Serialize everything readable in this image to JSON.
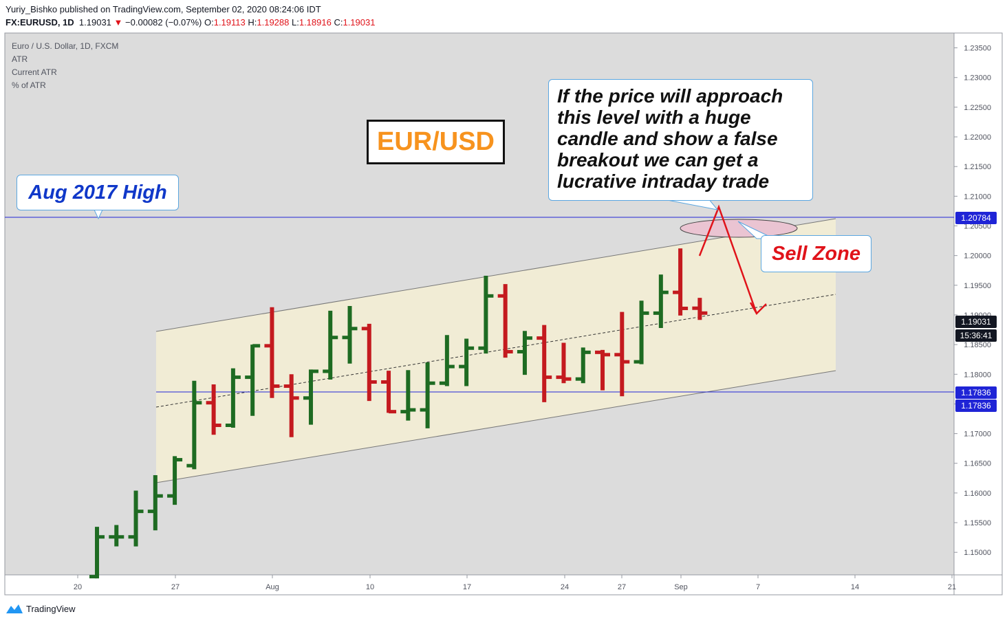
{
  "header": {
    "publish_line": "Yuriy_Bishko published on TradingView.com, September 02, 2020 08:24:06 IDT",
    "symbol": "FX:EURUSD, 1D",
    "last": "1.19031",
    "change": "−0.00082 (−0.07%)",
    "o_label": "O:",
    "o_value": "1.19113",
    "h_label": "H:",
    "h_value": "1.19288",
    "l_label": "L:",
    "l_value": "1.18916",
    "c_label": "C:",
    "c_value": "1.19031"
  },
  "legend": {
    "instrument": "Euro / U.S. Dollar, 1D, FXCM",
    "line2": "ATR",
    "line3": "Current ATR",
    "line4": "% of ATR"
  },
  "annotations": {
    "aug_high": "Aug 2017 High",
    "pair": "EUR/USD",
    "note_lines": [
      "If the price will approach",
      "this level with a huge",
      "candle and show a false",
      "breakout we can get a",
      "lucrative intraday trade"
    ],
    "sell_zone": "Sell Zone"
  },
  "price_labels": {
    "resistance": "1.20784",
    "last": "1.19031",
    "countdown": "15:36:41",
    "support_a": "1.17836",
    "support_b": "1.17836"
  },
  "footer": {
    "brand": "TradingView"
  },
  "colors": {
    "up": "#1e6b22",
    "down": "#c41a1f",
    "level": "#1f24d6",
    "channel_fill": "#f1ecd5",
    "plot_bg": "#dcdcdc"
  },
  "chart_data": {
    "type": "ohlc",
    "x_ticks": [
      "20",
      "27",
      "Aug",
      "10",
      "17",
      "24",
      "27",
      "Sep",
      "7",
      "14",
      "21"
    ],
    "y_ticks": [
      "1.23500",
      "1.23000",
      "1.22500",
      "1.22000",
      "1.21500",
      "1.21000",
      "1.20500",
      "1.20000",
      "1.19500",
      "1.19000",
      "1.18500",
      "1.18000",
      "1.17500",
      "1.17000",
      "1.16500",
      "1.16000",
      "1.15500",
      "1.15000"
    ],
    "ylim": [
      1.1462,
      1.2375
    ],
    "horizontal_levels": [
      1.20784,
      1.17836
    ],
    "bars": [
      {
        "date": "Jul 21",
        "o": 1.1459,
        "h": 1.1543,
        "l": 1.1456,
        "c": 1.1526
      },
      {
        "date": "Jul 22",
        "o": 1.1526,
        "h": 1.1546,
        "l": 1.151,
        "c": 1.1526
      },
      {
        "date": "Jul 23",
        "o": 1.1526,
        "h": 1.1604,
        "l": 1.151,
        "c": 1.1569
      },
      {
        "date": "Jul 24",
        "o": 1.1569,
        "h": 1.163,
        "l": 1.1537,
        "c": 1.1595
      },
      {
        "date": "Jul 27",
        "o": 1.1595,
        "h": 1.1662,
        "l": 1.158,
        "c": 1.1656
      },
      {
        "date": "Jul 28",
        "o": 1.1646,
        "h": 1.1789,
        "l": 1.164,
        "c": 1.1752
      },
      {
        "date": "Jul 29",
        "o": 1.1752,
        "h": 1.1783,
        "l": 1.1698,
        "c": 1.1714
      },
      {
        "date": "Jul 30",
        "o": 1.1714,
        "h": 1.181,
        "l": 1.171,
        "c": 1.1795
      },
      {
        "date": "Jul 31",
        "o": 1.1795,
        "h": 1.185,
        "l": 1.173,
        "c": 1.1848
      },
      {
        "date": "Aug 03",
        "o": 1.1848,
        "h": 1.1913,
        "l": 1.176,
        "c": 1.178
      },
      {
        "date": "Aug 04",
        "o": 1.178,
        "h": 1.18,
        "l": 1.1694,
        "c": 1.176
      },
      {
        "date": "Aug 05",
        "o": 1.176,
        "h": 1.1808,
        "l": 1.1715,
        "c": 1.1805
      },
      {
        "date": "Aug 06",
        "o": 1.1805,
        "h": 1.1907,
        "l": 1.1791,
        "c": 1.1862
      },
      {
        "date": "Aug 07",
        "o": 1.1862,
        "h": 1.1915,
        "l": 1.1818,
        "c": 1.1877
      },
      {
        "date": "Aug 10",
        "o": 1.1877,
        "h": 1.1885,
        "l": 1.1755,
        "c": 1.1787
      },
      {
        "date": "Aug 11",
        "o": 1.1787,
        "h": 1.1806,
        "l": 1.1735,
        "c": 1.1737
      },
      {
        "date": "Aug 12",
        "o": 1.1737,
        "h": 1.1807,
        "l": 1.1722,
        "c": 1.174
      },
      {
        "date": "Aug 13",
        "o": 1.174,
        "h": 1.182,
        "l": 1.1709,
        "c": 1.1785
      },
      {
        "date": "Aug 14",
        "o": 1.1785,
        "h": 1.1866,
        "l": 1.178,
        "c": 1.1813
      },
      {
        "date": "Aug 17",
        "o": 1.1813,
        "h": 1.186,
        "l": 1.178,
        "c": 1.1844
      },
      {
        "date": "Aug 18",
        "o": 1.1844,
        "h": 1.1966,
        "l": 1.1835,
        "c": 1.1932
      },
      {
        "date": "Aug 19",
        "o": 1.1932,
        "h": 1.1952,
        "l": 1.1828,
        "c": 1.1838
      },
      {
        "date": "Aug 20",
        "o": 1.1838,
        "h": 1.1873,
        "l": 1.1799,
        "c": 1.1861
      },
      {
        "date": "Aug 21",
        "o": 1.1861,
        "h": 1.1883,
        "l": 1.1753,
        "c": 1.1795
      },
      {
        "date": "Aug 24",
        "o": 1.1795,
        "h": 1.1853,
        "l": 1.1785,
        "c": 1.1792
      },
      {
        "date": "Aug 25",
        "o": 1.1792,
        "h": 1.1845,
        "l": 1.1785,
        "c": 1.1837
      },
      {
        "date": "Aug 26",
        "o": 1.1837,
        "h": 1.1841,
        "l": 1.1773,
        "c": 1.1833
      },
      {
        "date": "Aug 27",
        "o": 1.1833,
        "h": 1.1905,
        "l": 1.1763,
        "c": 1.1821
      },
      {
        "date": "Aug 28",
        "o": 1.1821,
        "h": 1.1924,
        "l": 1.1817,
        "c": 1.1903
      },
      {
        "date": "Aug 31",
        "o": 1.1903,
        "h": 1.1968,
        "l": 1.1878,
        "c": 1.1938
      },
      {
        "date": "Sep 01",
        "o": 1.1938,
        "h": 1.2012,
        "l": 1.1899,
        "c": 1.1911
      },
      {
        "date": "Sep 02",
        "o": 1.19113,
        "h": 1.19288,
        "l": 1.18916,
        "c": 1.19031
      }
    ]
  }
}
